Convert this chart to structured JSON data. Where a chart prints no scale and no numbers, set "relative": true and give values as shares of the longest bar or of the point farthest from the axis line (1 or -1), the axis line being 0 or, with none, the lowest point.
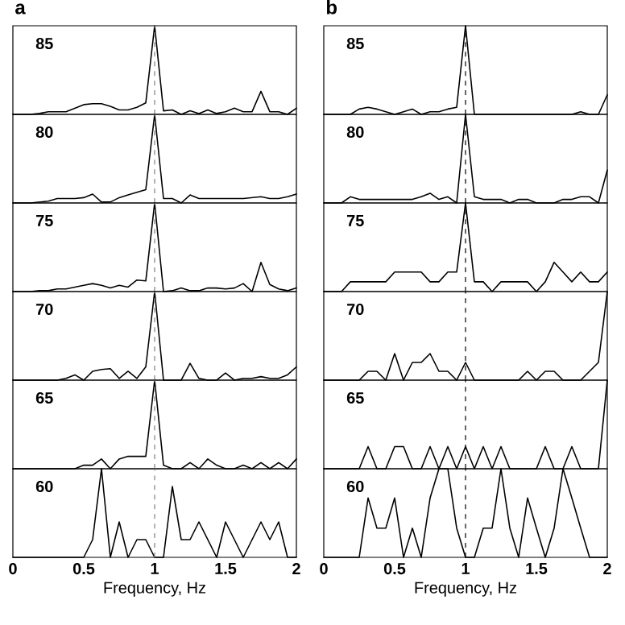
{
  "chart_data": [
    {
      "type": "line",
      "title": "a",
      "annotations": [
        "85"
      ],
      "relative": true,
      "categories": [
        null,
        null,
        null,
        null,
        null,
        null,
        null,
        null,
        null,
        null,
        null,
        null,
        null,
        null,
        null,
        null,
        null,
        null,
        null,
        null,
        null,
        null,
        null,
        null,
        null,
        null,
        null,
        null,
        null,
        null,
        null,
        null,
        null
      ],
      "series": [
        {
          "color": "#000000",
          "values": [
            0,
            0,
            0,
            0.01,
            0.03,
            0.03,
            0.03,
            0.07,
            0.11,
            0.12,
            0.12,
            0.09,
            0.05,
            0.05,
            0.08,
            0.13,
            1,
            0.04,
            0.05,
            0,
            0.04,
            0.01,
            0.05,
            0.01,
            0.03,
            0.07,
            0.03,
            0.03,
            0.26,
            0.03,
            0.03,
            0,
            0.07
          ]
        }
      ]
    },
    {
      "type": "line",
      "annotations": [
        "80"
      ],
      "relative": true,
      "categories": [
        null,
        null,
        null,
        null,
        null,
        null,
        null,
        null,
        null,
        null,
        null,
        null,
        null,
        null,
        null,
        null,
        null,
        null,
        null,
        null,
        null,
        null,
        null,
        null,
        null,
        null,
        null,
        null,
        null,
        null,
        null,
        null,
        null
      ],
      "series": [
        {
          "color": "#000000",
          "values": [
            0,
            0,
            0,
            0.01,
            0.02,
            0.05,
            0.05,
            0.05,
            0.06,
            0.1,
            0.01,
            0.01,
            0.06,
            0.09,
            0.12,
            0.15,
            1,
            0.05,
            0.05,
            0,
            0.09,
            0.05,
            0.05,
            0.05,
            0.05,
            0.05,
            0.05,
            0.06,
            0.07,
            0.05,
            0.05,
            0.07,
            0.1
          ]
        }
      ]
    },
    {
      "type": "line",
      "annotations": [
        "75"
      ],
      "relative": true,
      "categories": [
        null,
        null,
        null,
        null,
        null,
        null,
        null,
        null,
        null,
        null,
        null,
        null,
        null,
        null,
        null,
        null,
        null,
        null,
        null,
        null,
        null,
        null,
        null,
        null,
        null,
        null,
        null,
        null,
        null,
        null,
        null,
        null,
        null
      ],
      "series": [
        {
          "color": "#000000",
          "values": [
            0,
            0,
            0,
            0.01,
            0.01,
            0.03,
            0.03,
            0.05,
            0.07,
            0.09,
            0.07,
            0.04,
            0.07,
            0.05,
            0.13,
            0.12,
            1,
            0,
            0.01,
            0.04,
            0.01,
            0.01,
            0.04,
            0.04,
            0.03,
            0.04,
            0.09,
            0,
            0.33,
            0.08,
            0.03,
            0.01,
            0.04
          ]
        }
      ]
    },
    {
      "type": "line",
      "annotations": [
        "70"
      ],
      "relative": true,
      "categories": [
        null,
        null,
        null,
        null,
        null,
        null,
        null,
        null,
        null,
        null,
        null,
        null,
        null,
        null,
        null,
        null,
        null,
        null,
        null,
        null,
        null,
        null,
        null,
        null,
        null,
        null,
        null,
        null,
        null,
        null,
        null,
        null,
        null
      ],
      "series": [
        {
          "color": "#000000",
          "values": [
            0,
            0,
            0,
            0,
            0,
            0,
            0.02,
            0.06,
            0,
            0.1,
            0.12,
            0.13,
            0.02,
            0.1,
            0.02,
            0.15,
            1,
            0,
            0,
            0,
            0.19,
            0.02,
            0,
            0,
            0.08,
            0,
            0.02,
            0.02,
            0.04,
            0.02,
            0.02,
            0.06,
            0.15
          ]
        }
      ]
    },
    {
      "type": "line",
      "annotations": [
        "65"
      ],
      "relative": true,
      "categories": [
        null,
        null,
        null,
        null,
        null,
        null,
        null,
        null,
        null,
        null,
        null,
        null,
        null,
        null,
        null,
        null,
        null,
        null,
        null,
        null,
        null,
        null,
        null,
        null,
        null,
        null,
        null,
        null,
        null,
        null,
        null,
        null,
        null
      ],
      "series": [
        {
          "color": "#000000",
          "values": [
            0,
            0,
            0,
            0,
            0,
            0,
            0,
            0,
            0.04,
            0.04,
            0.11,
            0,
            0.11,
            0.14,
            0.14,
            0.14,
            1,
            0.04,
            0,
            0,
            0.07,
            0,
            0.11,
            0.04,
            0,
            0,
            0.04,
            0,
            0.07,
            0,
            0.07,
            0,
            0.11
          ]
        }
      ]
    },
    {
      "type": "line",
      "annotations": [
        "60"
      ],
      "relative": true,
      "xlim": [
        0,
        2
      ],
      "xticks": [
        0,
        0.5,
        1,
        1.5,
        2
      ],
      "xlabel": "Frequency, Hz",
      "ref_lines": [
        {
          "axis": "x",
          "value": 1,
          "color": "#808080",
          "line_style": "dashed"
        }
      ],
      "x": [
        0,
        0.0625,
        0.125,
        0.1875,
        0.25,
        0.3125,
        0.375,
        0.4375,
        0.5,
        0.5625,
        0.625,
        0.6875,
        0.75,
        0.8125,
        0.875,
        0.9375,
        1,
        1.0625,
        1.125,
        1.1875,
        1.25,
        1.3125,
        1.375,
        1.4375,
        1.5,
        1.5625,
        1.625,
        1.6875,
        1.75,
        1.8125,
        1.875,
        1.9375,
        2
      ],
      "series": [
        {
          "color": "#000000",
          "values": [
            0,
            0,
            0,
            0,
            0,
            0,
            0,
            0,
            0,
            0.2,
            1,
            0,
            0.4,
            0,
            0.2,
            0.2,
            0,
            0,
            0.8,
            0.2,
            0.2,
            0.4,
            0.2,
            0,
            0.4,
            0.2,
            0,
            0.2,
            0.4,
            0.2,
            0.4,
            0,
            0
          ]
        }
      ]
    },
    {
      "type": "line",
      "title": "b",
      "annotations": [
        "85"
      ],
      "relative": true,
      "categories": [
        null,
        null,
        null,
        null,
        null,
        null,
        null,
        null,
        null,
        null,
        null,
        null,
        null,
        null,
        null,
        null,
        null,
        null,
        null,
        null,
        null,
        null,
        null,
        null,
        null,
        null,
        null,
        null,
        null,
        null,
        null,
        null,
        null
      ],
      "series": [
        {
          "color": "#000000",
          "values": [
            0,
            0,
            0,
            0,
            0.06,
            0.08,
            0.06,
            0.03,
            0,
            0.03,
            0.06,
            0,
            0.03,
            0.03,
            0.06,
            0.08,
            1,
            0,
            0,
            0,
            0,
            0,
            0,
            0,
            0,
            0,
            0,
            0,
            0,
            0.03,
            0,
            0,
            0.22
          ]
        }
      ]
    },
    {
      "type": "line",
      "annotations": [
        "80"
      ],
      "relative": true,
      "categories": [
        null,
        null,
        null,
        null,
        null,
        null,
        null,
        null,
        null,
        null,
        null,
        null,
        null,
        null,
        null,
        null,
        null,
        null,
        null,
        null,
        null,
        null,
        null,
        null,
        null,
        null,
        null,
        null,
        null,
        null,
        null,
        null,
        null
      ],
      "series": [
        {
          "color": "#000000",
          "values": [
            0,
            0,
            0,
            0.07,
            0.04,
            0.04,
            0.04,
            0.04,
            0.04,
            0.04,
            0.04,
            0.07,
            0.11,
            0.04,
            0.07,
            0,
            1,
            0.07,
            0.04,
            0.04,
            0.04,
            0,
            0.04,
            0.04,
            0,
            0,
            0,
            0.04,
            0.04,
            0.07,
            0.07,
            0,
            0.37
          ]
        }
      ]
    },
    {
      "type": "line",
      "annotations": [
        "75"
      ],
      "relative": true,
      "categories": [
        null,
        null,
        null,
        null,
        null,
        null,
        null,
        null,
        null,
        null,
        null,
        null,
        null,
        null,
        null,
        null,
        null,
        null,
        null,
        null,
        null,
        null,
        null,
        null,
        null,
        null,
        null,
        null,
        null,
        null,
        null,
        null,
        null
      ],
      "series": [
        {
          "color": "#000000",
          "values": [
            0,
            0,
            0,
            0.11,
            0.11,
            0.11,
            0.11,
            0.11,
            0.22,
            0.22,
            0.22,
            0.22,
            0.11,
            0.11,
            0.22,
            0.22,
            1,
            0.11,
            0.11,
            0,
            0.11,
            0.11,
            0.11,
            0.11,
            0,
            0.11,
            0.33,
            0.22,
            0.11,
            0.22,
            0.11,
            0.11,
            0.22
          ]
        }
      ]
    },
    {
      "type": "line",
      "annotations": [
        "70"
      ],
      "relative": true,
      "categories": [
        null,
        null,
        null,
        null,
        null,
        null,
        null,
        null,
        null,
        null,
        null,
        null,
        null,
        null,
        null,
        null,
        null,
        null,
        null,
        null,
        null,
        null,
        null,
        null,
        null,
        null,
        null,
        null,
        null,
        null,
        null,
        null,
        null
      ],
      "series": [
        {
          "color": "#000000",
          "values": [
            0,
            0,
            0,
            0,
            0,
            0.1,
            0.1,
            0,
            0.3,
            0,
            0.2,
            0.2,
            0.3,
            0.1,
            0.1,
            0,
            0.2,
            0,
            0,
            0,
            0,
            0,
            0,
            0.1,
            0,
            0.1,
            0.1,
            0,
            0,
            0,
            0.1,
            0.2,
            1
          ]
        }
      ]
    },
    {
      "type": "line",
      "annotations": [
        "65"
      ],
      "relative": true,
      "categories": [
        null,
        null,
        null,
        null,
        null,
        null,
        null,
        null,
        null,
        null,
        null,
        null,
        null,
        null,
        null,
        null,
        null,
        null,
        null,
        null,
        null,
        null,
        null,
        null,
        null,
        null,
        null,
        null,
        null,
        null,
        null,
        null,
        null
      ],
      "series": [
        {
          "color": "#000000",
          "values": [
            0,
            0,
            0,
            0,
            0,
            0.25,
            0,
            0,
            0.25,
            0.25,
            0,
            0,
            0.25,
            0,
            0.25,
            0,
            0.25,
            0,
            0.25,
            0,
            0.25,
            0,
            0,
            0,
            0,
            0.25,
            0,
            0,
            0.25,
            0,
            0,
            0,
            1
          ]
        }
      ]
    },
    {
      "type": "line",
      "annotations": [
        "60"
      ],
      "relative": true,
      "xlim": [
        0,
        2
      ],
      "xticks": [
        0,
        0.5,
        1,
        1.5,
        2
      ],
      "xlabel": "Frequency, Hz",
      "ref_lines": [
        {
          "axis": "x",
          "value": 1,
          "color": "#000000",
          "line_style": "dashed"
        }
      ],
      "x": [
        0,
        0.0625,
        0.125,
        0.1875,
        0.25,
        0.3125,
        0.375,
        0.4375,
        0.5,
        0.5625,
        0.625,
        0.6875,
        0.75,
        0.8125,
        0.875,
        0.9375,
        1,
        1.0625,
        1.125,
        1.1875,
        1.25,
        1.3125,
        1.375,
        1.4375,
        1.5,
        1.5625,
        1.625,
        1.6875,
        1.75,
        1.8125,
        1.875,
        1.9375,
        2
      ],
      "series": [
        {
          "color": "#000000",
          "values": [
            0,
            0,
            0,
            0,
            0,
            0.67,
            0.33,
            0.33,
            0.67,
            0,
            0.33,
            0,
            0.67,
            1,
            1,
            0.33,
            0,
            0,
            0.33,
            0.33,
            1,
            0.33,
            0,
            0.67,
            0.33,
            0,
            0.33,
            1,
            0.67,
            0.33,
            0,
            0,
            0
          ]
        }
      ]
    }
  ]
}
